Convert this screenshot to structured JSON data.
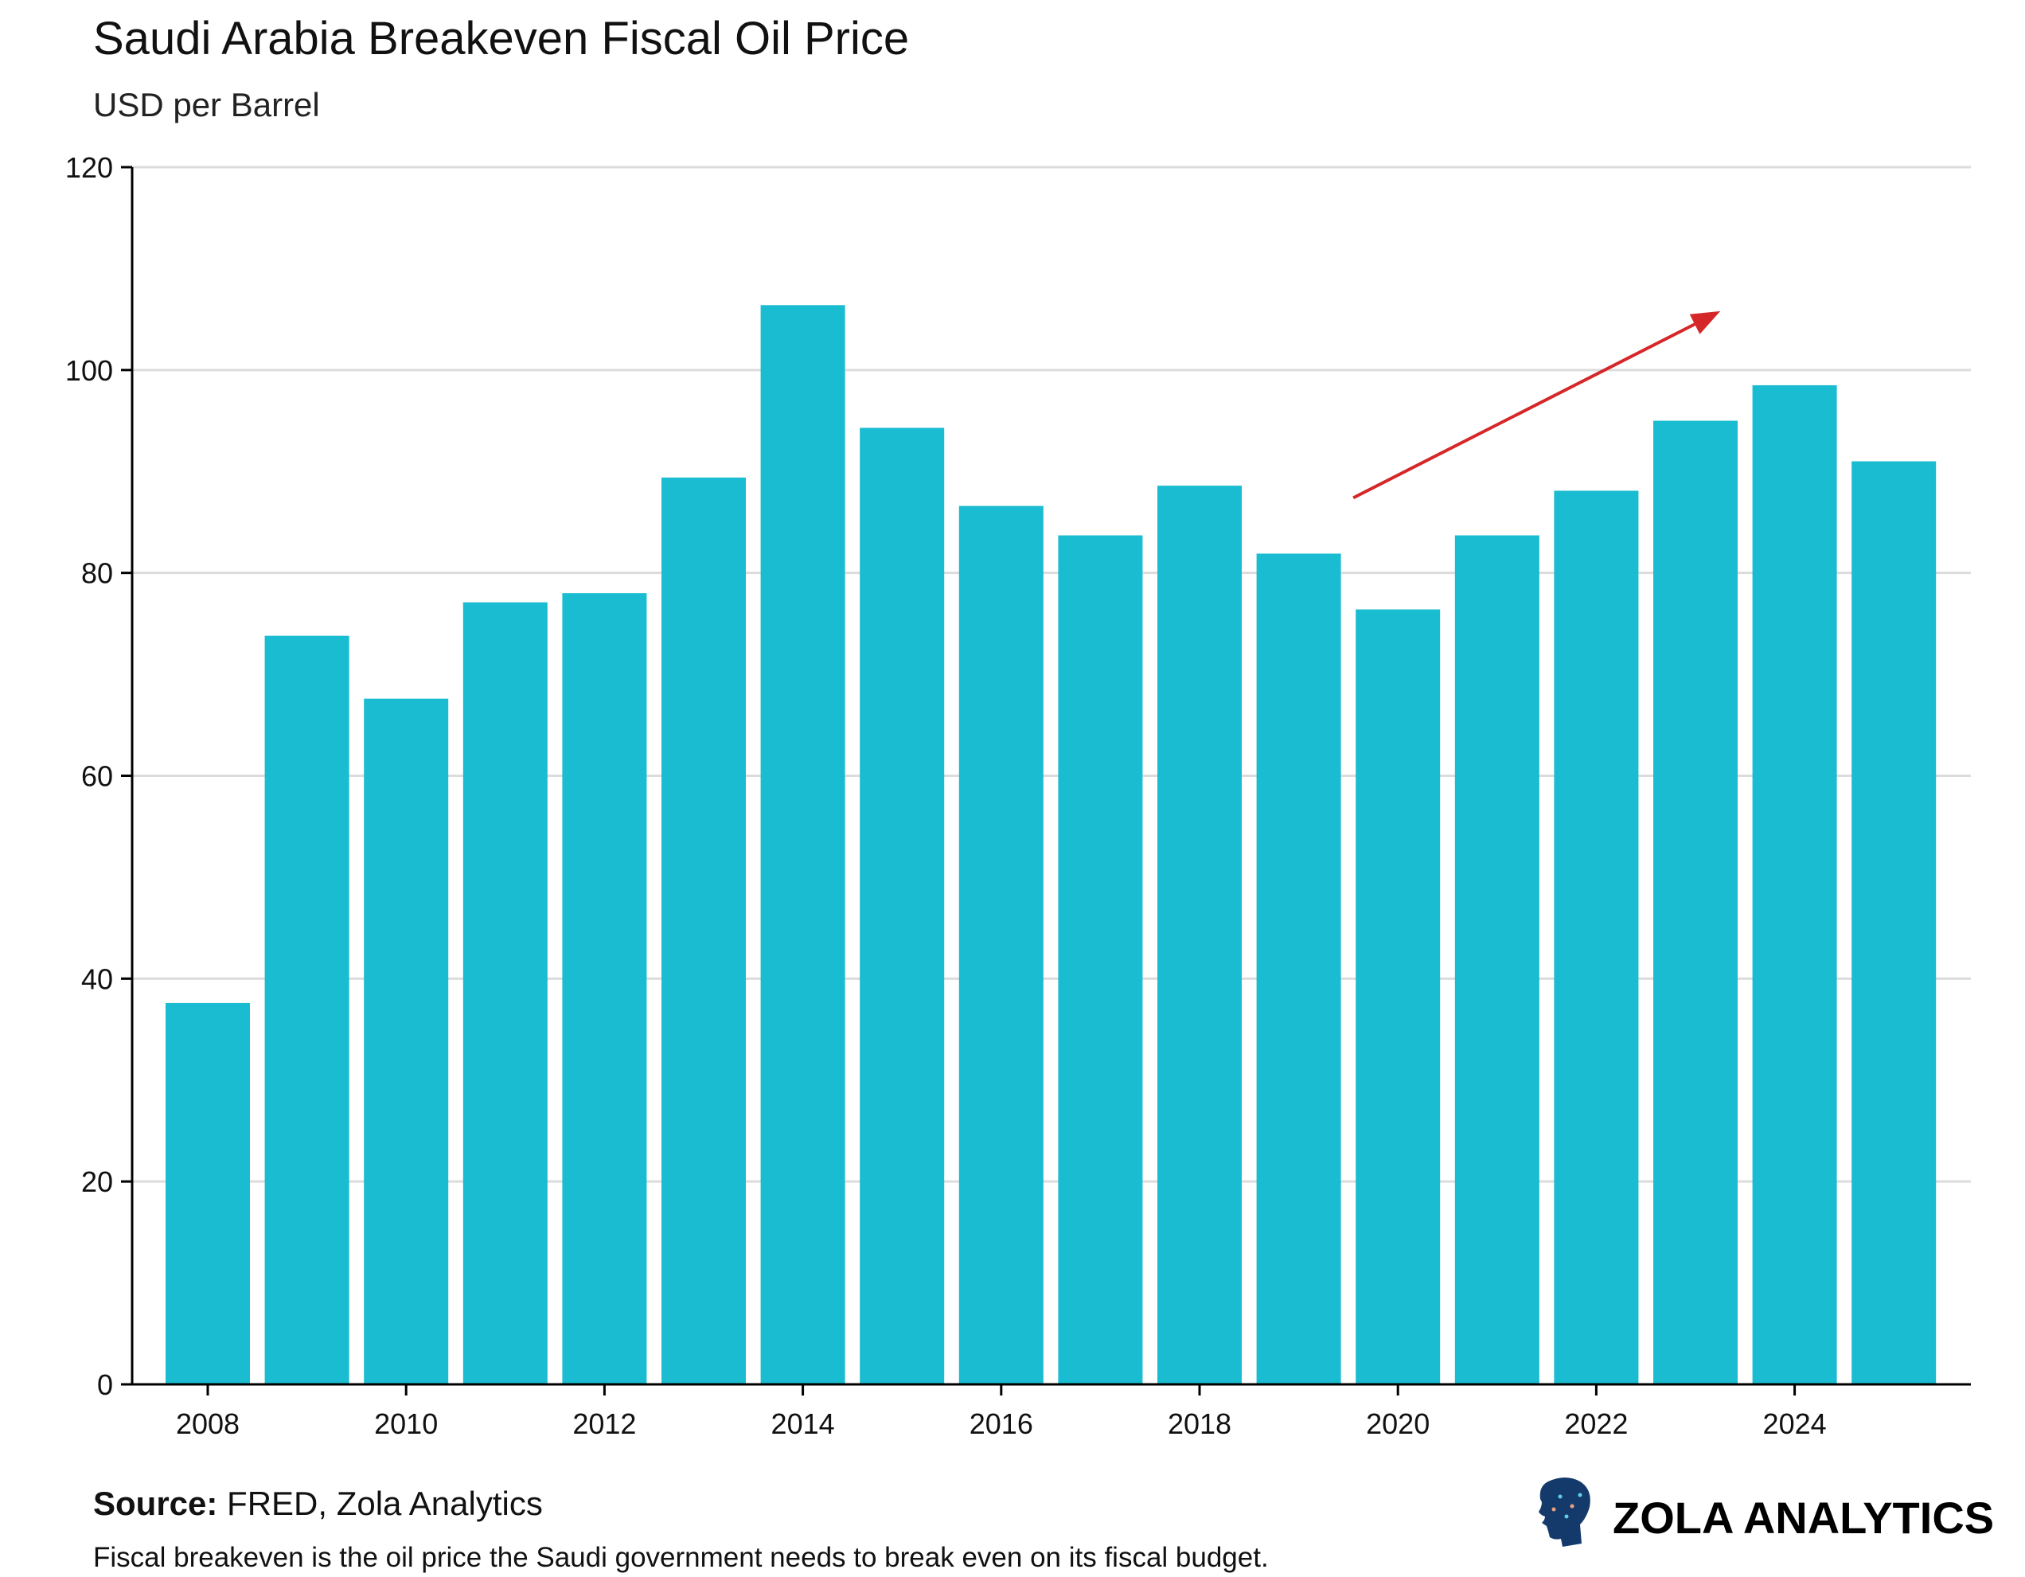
{
  "chart_data": {
    "type": "bar",
    "title": "Saudi Arabia Breakeven Fiscal Oil Price",
    "subtitle": "USD per Barrel",
    "xlabel": "",
    "ylabel": "",
    "categories": [
      2008,
      2009,
      2010,
      2011,
      2012,
      2013,
      2014,
      2015,
      2016,
      2017,
      2018,
      2019,
      2020,
      2021,
      2022,
      2023,
      2024,
      2025
    ],
    "values": [
      37.6,
      73.8,
      67.6,
      77.1,
      78.0,
      89.4,
      106.4,
      94.3,
      86.6,
      83.7,
      88.6,
      81.9,
      76.4,
      83.7,
      88.1,
      95.0,
      98.5,
      91.0
    ],
    "ylim": [
      0,
      120
    ],
    "yticks": [
      0,
      20,
      40,
      60,
      80,
      100,
      120
    ],
    "xticks": [
      2008,
      2010,
      2012,
      2014,
      2016,
      2018,
      2020,
      2022,
      2024
    ],
    "grid": true,
    "bar_color": "#19bcd0",
    "annotations": [
      {
        "type": "arrow",
        "from": [
          2019.55,
          87.4
        ],
        "to": [
          2023.25,
          105.8
        ],
        "color": "#d62728"
      }
    ]
  },
  "footer": {
    "source_label": "Source:",
    "source_text": " FRED, Zola Analytics",
    "note": "Fiscal breakeven is the oil price the Saudi government needs to break even on its fiscal budget.",
    "logo_text": "ZOLA ANALYTICS"
  }
}
